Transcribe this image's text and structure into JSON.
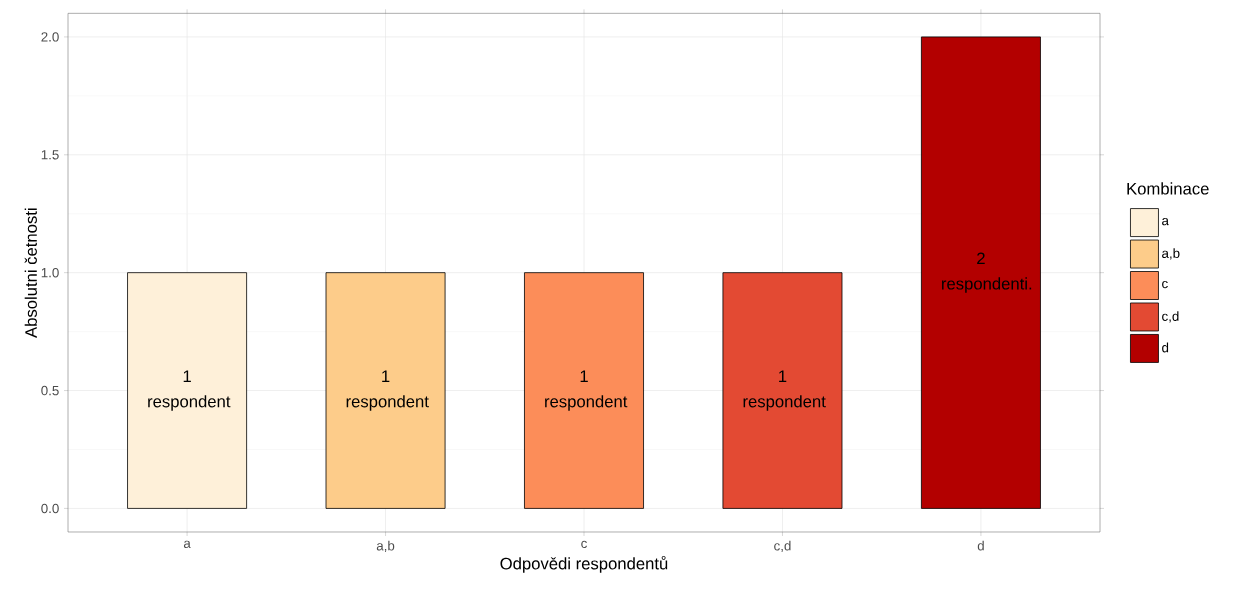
{
  "chart_data": {
    "type": "bar",
    "xlabel": "Odpovědi respondentů",
    "ylabel": "Absolutni četnosti",
    "legend_title": "Kombinace",
    "categories": [
      "a",
      "a,b",
      "c",
      "c,d",
      "d"
    ],
    "series": [
      {
        "name": "a",
        "color": "#fef0d9",
        "values": [
          1,
          null,
          null,
          null,
          null
        ],
        "value_labels": [
          "1 respondent",
          null,
          null,
          null,
          null
        ]
      },
      {
        "name": "a,b",
        "color": "#fdcc8a",
        "values": [
          null,
          1,
          null,
          null,
          null
        ],
        "value_labels": [
          null,
          "1 respondent",
          null,
          null,
          null
        ]
      },
      {
        "name": "c",
        "color": "#fc8d59",
        "values": [
          null,
          null,
          1,
          null,
          null
        ],
        "value_labels": [
          null,
          null,
          "1 respondent",
          null,
          null
        ]
      },
      {
        "name": "c,d",
        "color": "#e34a33",
        "values": [
          null,
          null,
          null,
          1,
          null
        ],
        "value_labels": [
          null,
          null,
          null,
          "1 respondent",
          null
        ]
      },
      {
        "name": "d",
        "color": "#b30000",
        "values": [
          null,
          null,
          null,
          null,
          2
        ],
        "value_labels": [
          null,
          null,
          null,
          null,
          "2 respondenti."
        ]
      }
    ],
    "ylim": [
      -0.1,
      2.1
    ],
    "yticks": [
      {
        "value": 0,
        "label": "0.0"
      },
      {
        "value": 0.5,
        "label": "0.5"
      },
      {
        "value": 1,
        "label": "1.0"
      },
      {
        "value": 1.5,
        "label": "1.5"
      },
      {
        "value": 2,
        "label": "2.0"
      }
    ],
    "grid": true,
    "legend": "right"
  }
}
